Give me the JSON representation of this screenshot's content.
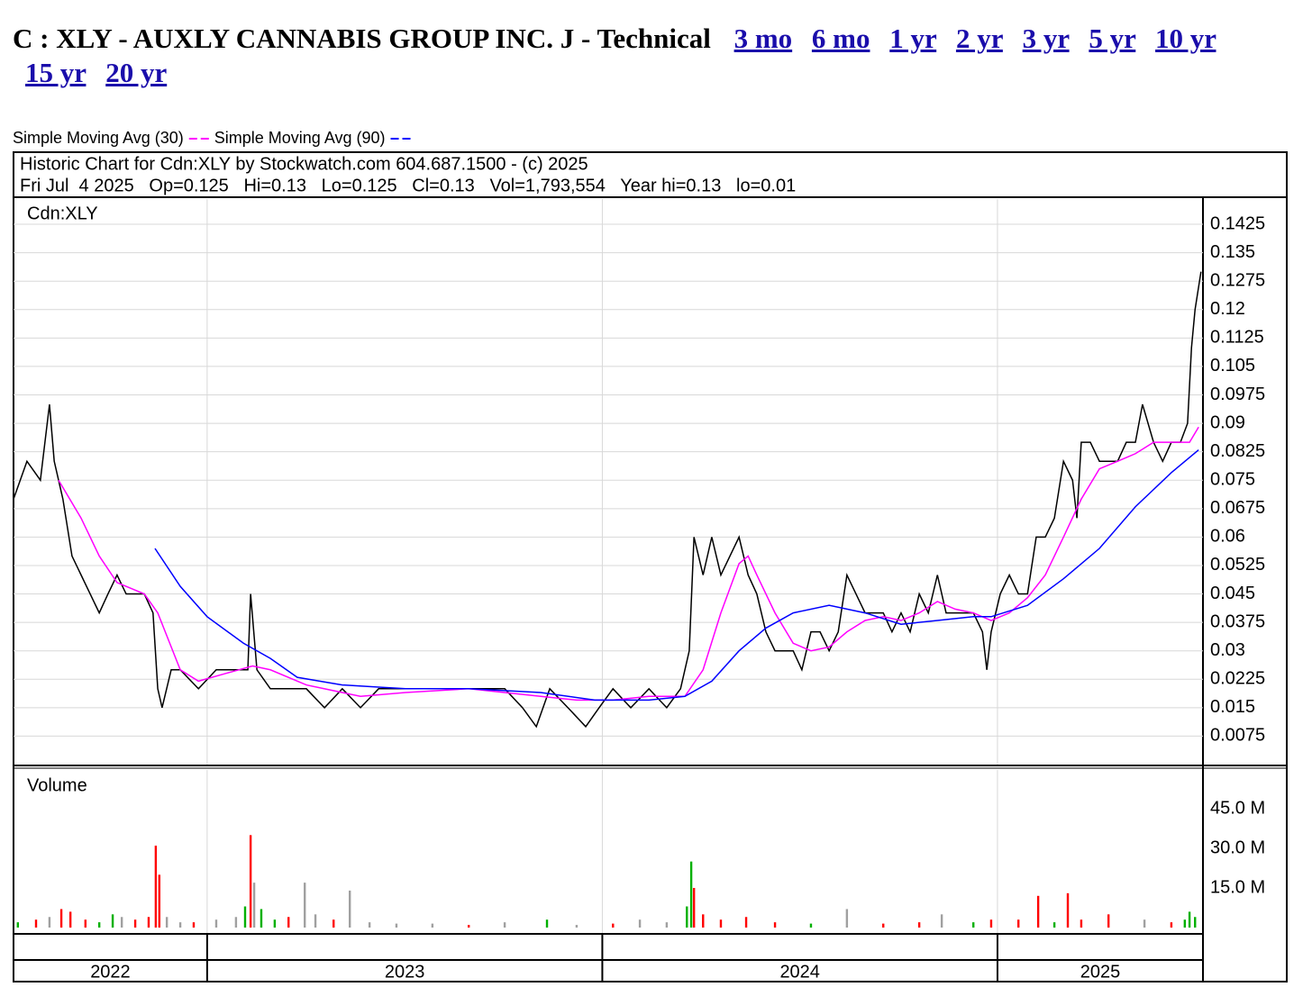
{
  "header": {
    "title": "C : XLY - AUXLY CANNABIS GROUP INC. J - Technical",
    "links": [
      "3 mo",
      "6 mo",
      "1 yr",
      "2 yr",
      "3 yr",
      "5 yr",
      "10 yr",
      "15 yr",
      "20 yr"
    ]
  },
  "info": [
    "Historic Chart for Cdn:XLY by Stockwatch.com 604.687.1500 - (c) 2025",
    "Fri Jul  4 2025   Op=0.125   Hi=0.13   Lo=0.125   Cl=0.13   Vol=1,793,554   Year hi=0.13   lo=0.01"
  ],
  "year_labels": [
    2022,
    2023,
    2024,
    2025
  ],
  "chart_data": [
    {
      "type": "line",
      "label": "Cdn:XLY",
      "xlim": [
        2022.51,
        2025.52
      ],
      "xticks": [
        2023,
        2024,
        2025
      ],
      "ylim": [
        0,
        0.1475
      ],
      "yticks": [
        0.0075,
        0.015,
        0.0225,
        0.03,
        0.0375,
        0.045,
        0.0525,
        0.06,
        0.0675,
        0.075,
        0.0825,
        0.09,
        0.0975,
        0.105,
        0.1125,
        0.12,
        0.1275,
        0.135,
        0.1425
      ],
      "grid": true,
      "series": [
        {
          "color": "#000000",
          "x": [
            2022.51,
            2022.544,
            2022.578,
            2022.601,
            2022.613,
            2022.635,
            2022.658,
            2022.681,
            2022.704,
            2022.727,
            2022.749,
            2022.772,
            2022.795,
            2022.841,
            2022.863,
            2022.875,
            2022.886,
            2022.909,
            2022.932,
            2022.978,
            2023.023,
            2023.069,
            2023.103,
            2023.11,
            2023.126,
            2023.16,
            2023.206,
            2023.251,
            2023.297,
            2023.342,
            2023.388,
            2023.434,
            2023.479,
            2023.525,
            2023.57,
            2023.616,
            2023.662,
            2023.707,
            2023.753,
            2023.798,
            2023.833,
            2023.867,
            2023.913,
            2023.958,
            2023.992,
            2024.027,
            2024.072,
            2024.118,
            2024.163,
            2024.198,
            2024.22,
            2024.232,
            2024.255,
            2024.277,
            2024.3,
            2024.323,
            2024.346,
            2024.369,
            2024.391,
            2024.414,
            2024.437,
            2024.46,
            2024.483,
            2024.505,
            2024.528,
            2024.551,
            2024.574,
            2024.597,
            2024.619,
            2024.642,
            2024.665,
            2024.688,
            2024.711,
            2024.733,
            2024.756,
            2024.779,
            2024.802,
            2024.825,
            2024.848,
            2024.87,
            2024.893,
            2024.916,
            2024.939,
            2024.962,
            2024.973,
            2024.984,
            2025.007,
            2025.03,
            2025.053,
            2025.076,
            2025.098,
            2025.121,
            2025.144,
            2025.167,
            2025.19,
            2025.201,
            2025.212,
            2025.235,
            2025.258,
            2025.281,
            2025.304,
            2025.326,
            2025.349,
            2025.367,
            2025.395,
            2025.418,
            2025.44,
            2025.463,
            2025.481,
            2025.491,
            2025.5,
            2025.515
          ],
          "values": [
            0.07,
            0.08,
            0.075,
            0.095,
            0.08,
            0.07,
            0.055,
            0.05,
            0.045,
            0.04,
            0.045,
            0.05,
            0.045,
            0.045,
            0.04,
            0.02,
            0.015,
            0.025,
            0.025,
            0.02,
            0.025,
            0.025,
            0.025,
            0.045,
            0.025,
            0.02,
            0.02,
            0.02,
            0.015,
            0.02,
            0.015,
            0.02,
            0.02,
            0.02,
            0.02,
            0.02,
            0.02,
            0.02,
            0.02,
            0.015,
            0.01,
            0.02,
            0.015,
            0.01,
            0.015,
            0.02,
            0.015,
            0.02,
            0.015,
            0.02,
            0.03,
            0.06,
            0.05,
            0.06,
            0.05,
            0.055,
            0.06,
            0.05,
            0.045,
            0.035,
            0.03,
            0.03,
            0.03,
            0.025,
            0.035,
            0.035,
            0.03,
            0.035,
            0.05,
            0.045,
            0.04,
            0.04,
            0.04,
            0.035,
            0.04,
            0.035,
            0.045,
            0.04,
            0.05,
            0.04,
            0.04,
            0.04,
            0.04,
            0.035,
            0.025,
            0.035,
            0.045,
            0.05,
            0.045,
            0.045,
            0.06,
            0.06,
            0.065,
            0.08,
            0.075,
            0.065,
            0.085,
            0.085,
            0.08,
            0.08,
            0.08,
            0.085,
            0.085,
            0.095,
            0.085,
            0.08,
            0.085,
            0.085,
            0.09,
            0.11,
            0.12,
            0.13
          ]
        },
        {
          "name": "Simple Moving Avg (30)",
          "color": "#ff00ff",
          "x": [
            2022.624,
            2022.681,
            2022.727,
            2022.772,
            2022.841,
            2022.875,
            2022.932,
            2022.978,
            2023.046,
            2023.115,
            2023.16,
            2023.251,
            2023.388,
            2023.502,
            2023.662,
            2023.753,
            2023.844,
            2023.935,
            2024.027,
            2024.118,
            2024.209,
            2024.255,
            2024.3,
            2024.346,
            2024.369,
            2024.391,
            2024.437,
            2024.483,
            2024.528,
            2024.574,
            2024.619,
            2024.665,
            2024.711,
            2024.756,
            2024.802,
            2024.848,
            2024.893,
            2024.939,
            2024.984,
            2025.03,
            2025.076,
            2025.121,
            2025.167,
            2025.212,
            2025.258,
            2025.304,
            2025.349,
            2025.395,
            2025.44,
            2025.486,
            2025.509
          ],
          "values": [
            0.075,
            0.065,
            0.055,
            0.048,
            0.045,
            0.04,
            0.025,
            0.022,
            0.024,
            0.026,
            0.025,
            0.021,
            0.018,
            0.019,
            0.02,
            0.019,
            0.018,
            0.017,
            0.017,
            0.018,
            0.018,
            0.025,
            0.04,
            0.053,
            0.055,
            0.05,
            0.04,
            0.032,
            0.03,
            0.031,
            0.035,
            0.038,
            0.039,
            0.038,
            0.04,
            0.043,
            0.041,
            0.04,
            0.038,
            0.04,
            0.044,
            0.05,
            0.06,
            0.07,
            0.078,
            0.08,
            0.082,
            0.085,
            0.085,
            0.085,
            0.089
          ]
        },
        {
          "name": "Simple Moving Avg (90)",
          "color": "#0000ff",
          "x": [
            2022.868,
            2022.932,
            2023.0,
            2023.092,
            2023.16,
            2023.228,
            2023.342,
            2023.502,
            2023.662,
            2023.844,
            2023.981,
            2024.118,
            2024.209,
            2024.277,
            2024.346,
            2024.414,
            2024.483,
            2024.574,
            2024.665,
            2024.756,
            2024.848,
            2024.939,
            2024.984,
            2025.076,
            2025.167,
            2025.258,
            2025.349,
            2025.44,
            2025.509
          ],
          "values": [
            0.057,
            0.047,
            0.039,
            0.032,
            0.028,
            0.023,
            0.021,
            0.02,
            0.02,
            0.019,
            0.017,
            0.017,
            0.018,
            0.022,
            0.03,
            0.036,
            0.04,
            0.042,
            0.04,
            0.037,
            0.038,
            0.039,
            0.039,
            0.042,
            0.049,
            0.057,
            0.068,
            0.077,
            0.083
          ]
        }
      ]
    },
    {
      "type": "bar",
      "label": "Volume",
      "xlim": [
        2022.51,
        2025.52
      ],
      "xticks": [
        2023,
        2024,
        2025
      ],
      "ylim": [
        0,
        60000000
      ],
      "yticks": [
        {
          "value": 15000000,
          "label": "15.0 M"
        },
        {
          "value": 30000000,
          "label": "30.0 M"
        },
        {
          "value": 45000000,
          "label": "45.0 M"
        }
      ],
      "x": [
        2022.521,
        2022.567,
        2022.601,
        2022.631,
        2022.654,
        2022.692,
        2022.727,
        2022.761,
        2022.784,
        2022.818,
        2022.852,
        2022.87,
        2022.879,
        2022.898,
        2022.932,
        2022.966,
        2023.023,
        2023.073,
        2023.096,
        2023.11,
        2023.119,
        2023.137,
        2023.171,
        2023.206,
        2023.247,
        2023.274,
        2023.32,
        2023.361,
        2023.411,
        2023.479,
        2023.57,
        2023.662,
        2023.753,
        2023.86,
        2023.935,
        2024.027,
        2024.095,
        2024.163,
        2024.214,
        2024.225,
        2024.232,
        2024.255,
        2024.3,
        2024.364,
        2024.437,
        2024.528,
        2024.619,
        2024.711,
        2024.802,
        2024.859,
        2024.939,
        2024.984,
        2025.053,
        2025.103,
        2025.144,
        2025.178,
        2025.212,
        2025.281,
        2025.372,
        2025.44,
        2025.474,
        2025.486,
        2025.5
      ],
      "values": [
        2000000,
        3000000,
        4000000,
        7000000,
        6000000,
        3000000,
        2000000,
        5000000,
        4000000,
        3000000,
        4000000,
        31000000,
        20000000,
        4000000,
        2000000,
        2000000,
        3000000,
        4000000,
        8000000,
        35000000,
        17000000,
        7000000,
        3000000,
        4000000,
        17000000,
        5000000,
        3000000,
        14000000,
        2000000,
        1500000,
        1500000,
        1000000,
        2000000,
        3000000,
        1000000,
        1500000,
        3000000,
        2000000,
        8000000,
        25000000,
        15000000,
        5000000,
        3000000,
        4000000,
        2000000,
        1500000,
        7000000,
        1500000,
        2000000,
        5000000,
        2000000,
        3000000,
        3000000,
        12000000,
        2000000,
        13000000,
        3000000,
        5000000,
        3000000,
        2000000,
        3000000,
        6000000,
        4000000
      ],
      "colors": [
        "#00b000",
        "#ff0000",
        "#a0a0a0",
        "#ff0000",
        "#ff0000",
        "#ff0000",
        "#00b000",
        "#00b000",
        "#a0a0a0",
        "#ff0000",
        "#ff0000",
        "#ff0000",
        "#ff0000",
        "#a0a0a0",
        "#a0a0a0",
        "#ff0000",
        "#a0a0a0",
        "#a0a0a0",
        "#00b000",
        "#ff0000",
        "#a0a0a0",
        "#00b000",
        "#00b000",
        "#ff0000",
        "#a0a0a0",
        "#a0a0a0",
        "#ff0000",
        "#a0a0a0",
        "#a0a0a0",
        "#a0a0a0",
        "#a0a0a0",
        "#ff0000",
        "#a0a0a0",
        "#00b000",
        "#a0a0a0",
        "#ff0000",
        "#a0a0a0",
        "#a0a0a0",
        "#00b000",
        "#00b000",
        "#ff0000",
        "#ff0000",
        "#ff0000",
        "#ff0000",
        "#ff0000",
        "#00b000",
        "#a0a0a0",
        "#ff0000",
        "#ff0000",
        "#a0a0a0",
        "#00b000",
        "#ff0000",
        "#ff0000",
        "#ff0000",
        "#00b000",
        "#ff0000",
        "#ff0000",
        "#ff0000",
        "#a0a0a0",
        "#ff0000",
        "#00b000",
        "#00b000",
        "#00b000"
      ]
    }
  ]
}
